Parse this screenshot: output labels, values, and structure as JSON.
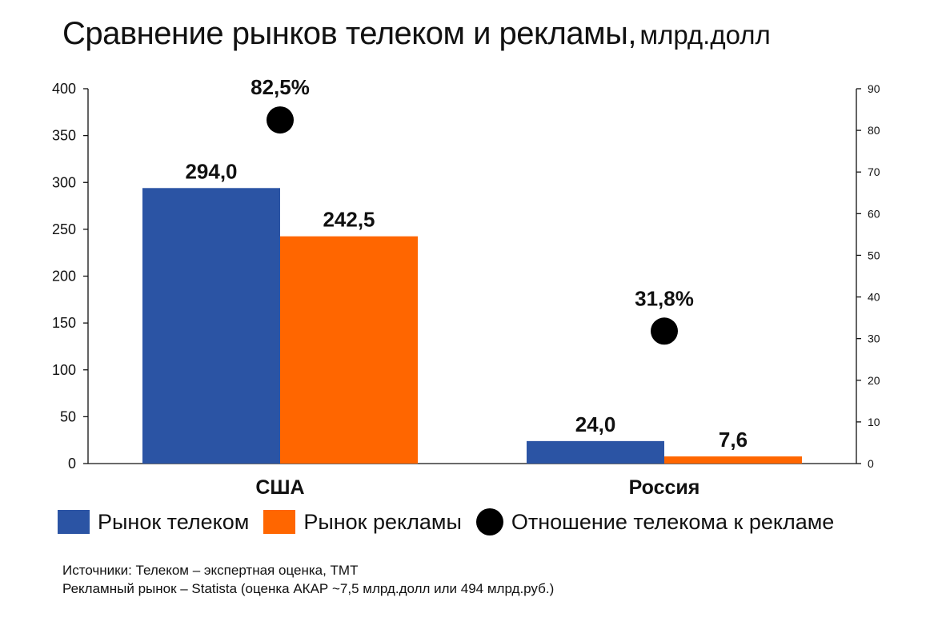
{
  "title": {
    "main": "Сравнение рынков телеком и рекламы,",
    "unit": "млрд.долл"
  },
  "chart_data": {
    "type": "bar",
    "categories": [
      "США",
      "Россия"
    ],
    "series": [
      {
        "name": "Рынок телеком",
        "values": [
          294.0,
          24.0
        ],
        "labels": [
          "294,0",
          "24,0"
        ],
        "color": "#2b54a4",
        "axis": "left"
      },
      {
        "name": "Рынок рекламы",
        "values": [
          242.5,
          7.6
        ],
        "labels": [
          "242,5",
          "7,6"
        ],
        "color": "#ff6600",
        "axis": "left"
      },
      {
        "name": "Отношение телекома к рекламе",
        "type": "scatter",
        "values": [
          82.5,
          31.8
        ],
        "labels": [
          "82,5%",
          "31,8%"
        ],
        "color": "#000000",
        "axis": "right"
      }
    ],
    "y_left": {
      "ylim": [
        0,
        400
      ],
      "ticks": [
        "0",
        "50",
        "100",
        "150",
        "200",
        "250",
        "300",
        "350",
        "400"
      ]
    },
    "y_right": {
      "ylim": [
        0,
        90
      ],
      "ticks": [
        "0",
        "10",
        "20",
        "30",
        "40",
        "50",
        "60",
        "70",
        "80",
        "90"
      ]
    },
    "grid": false,
    "legend_position": "bottom"
  },
  "legend": [
    {
      "label": "Рынок телеком",
      "color": "#2b54a4",
      "marker": "square"
    },
    {
      "label": "Рынок рекламы",
      "color": "#ff6600",
      "marker": "square"
    },
    {
      "label": "Отношение телекома к рекламе",
      "color": "#000000",
      "marker": "circle"
    }
  ],
  "sources": {
    "line1": "Источники: Телеком – экспертная оценка, ТМТ",
    "line2": "Рекламный рынок – Statista (оценка АКАР ~7,5 млрд.долл или 494 млрд.руб.)"
  }
}
